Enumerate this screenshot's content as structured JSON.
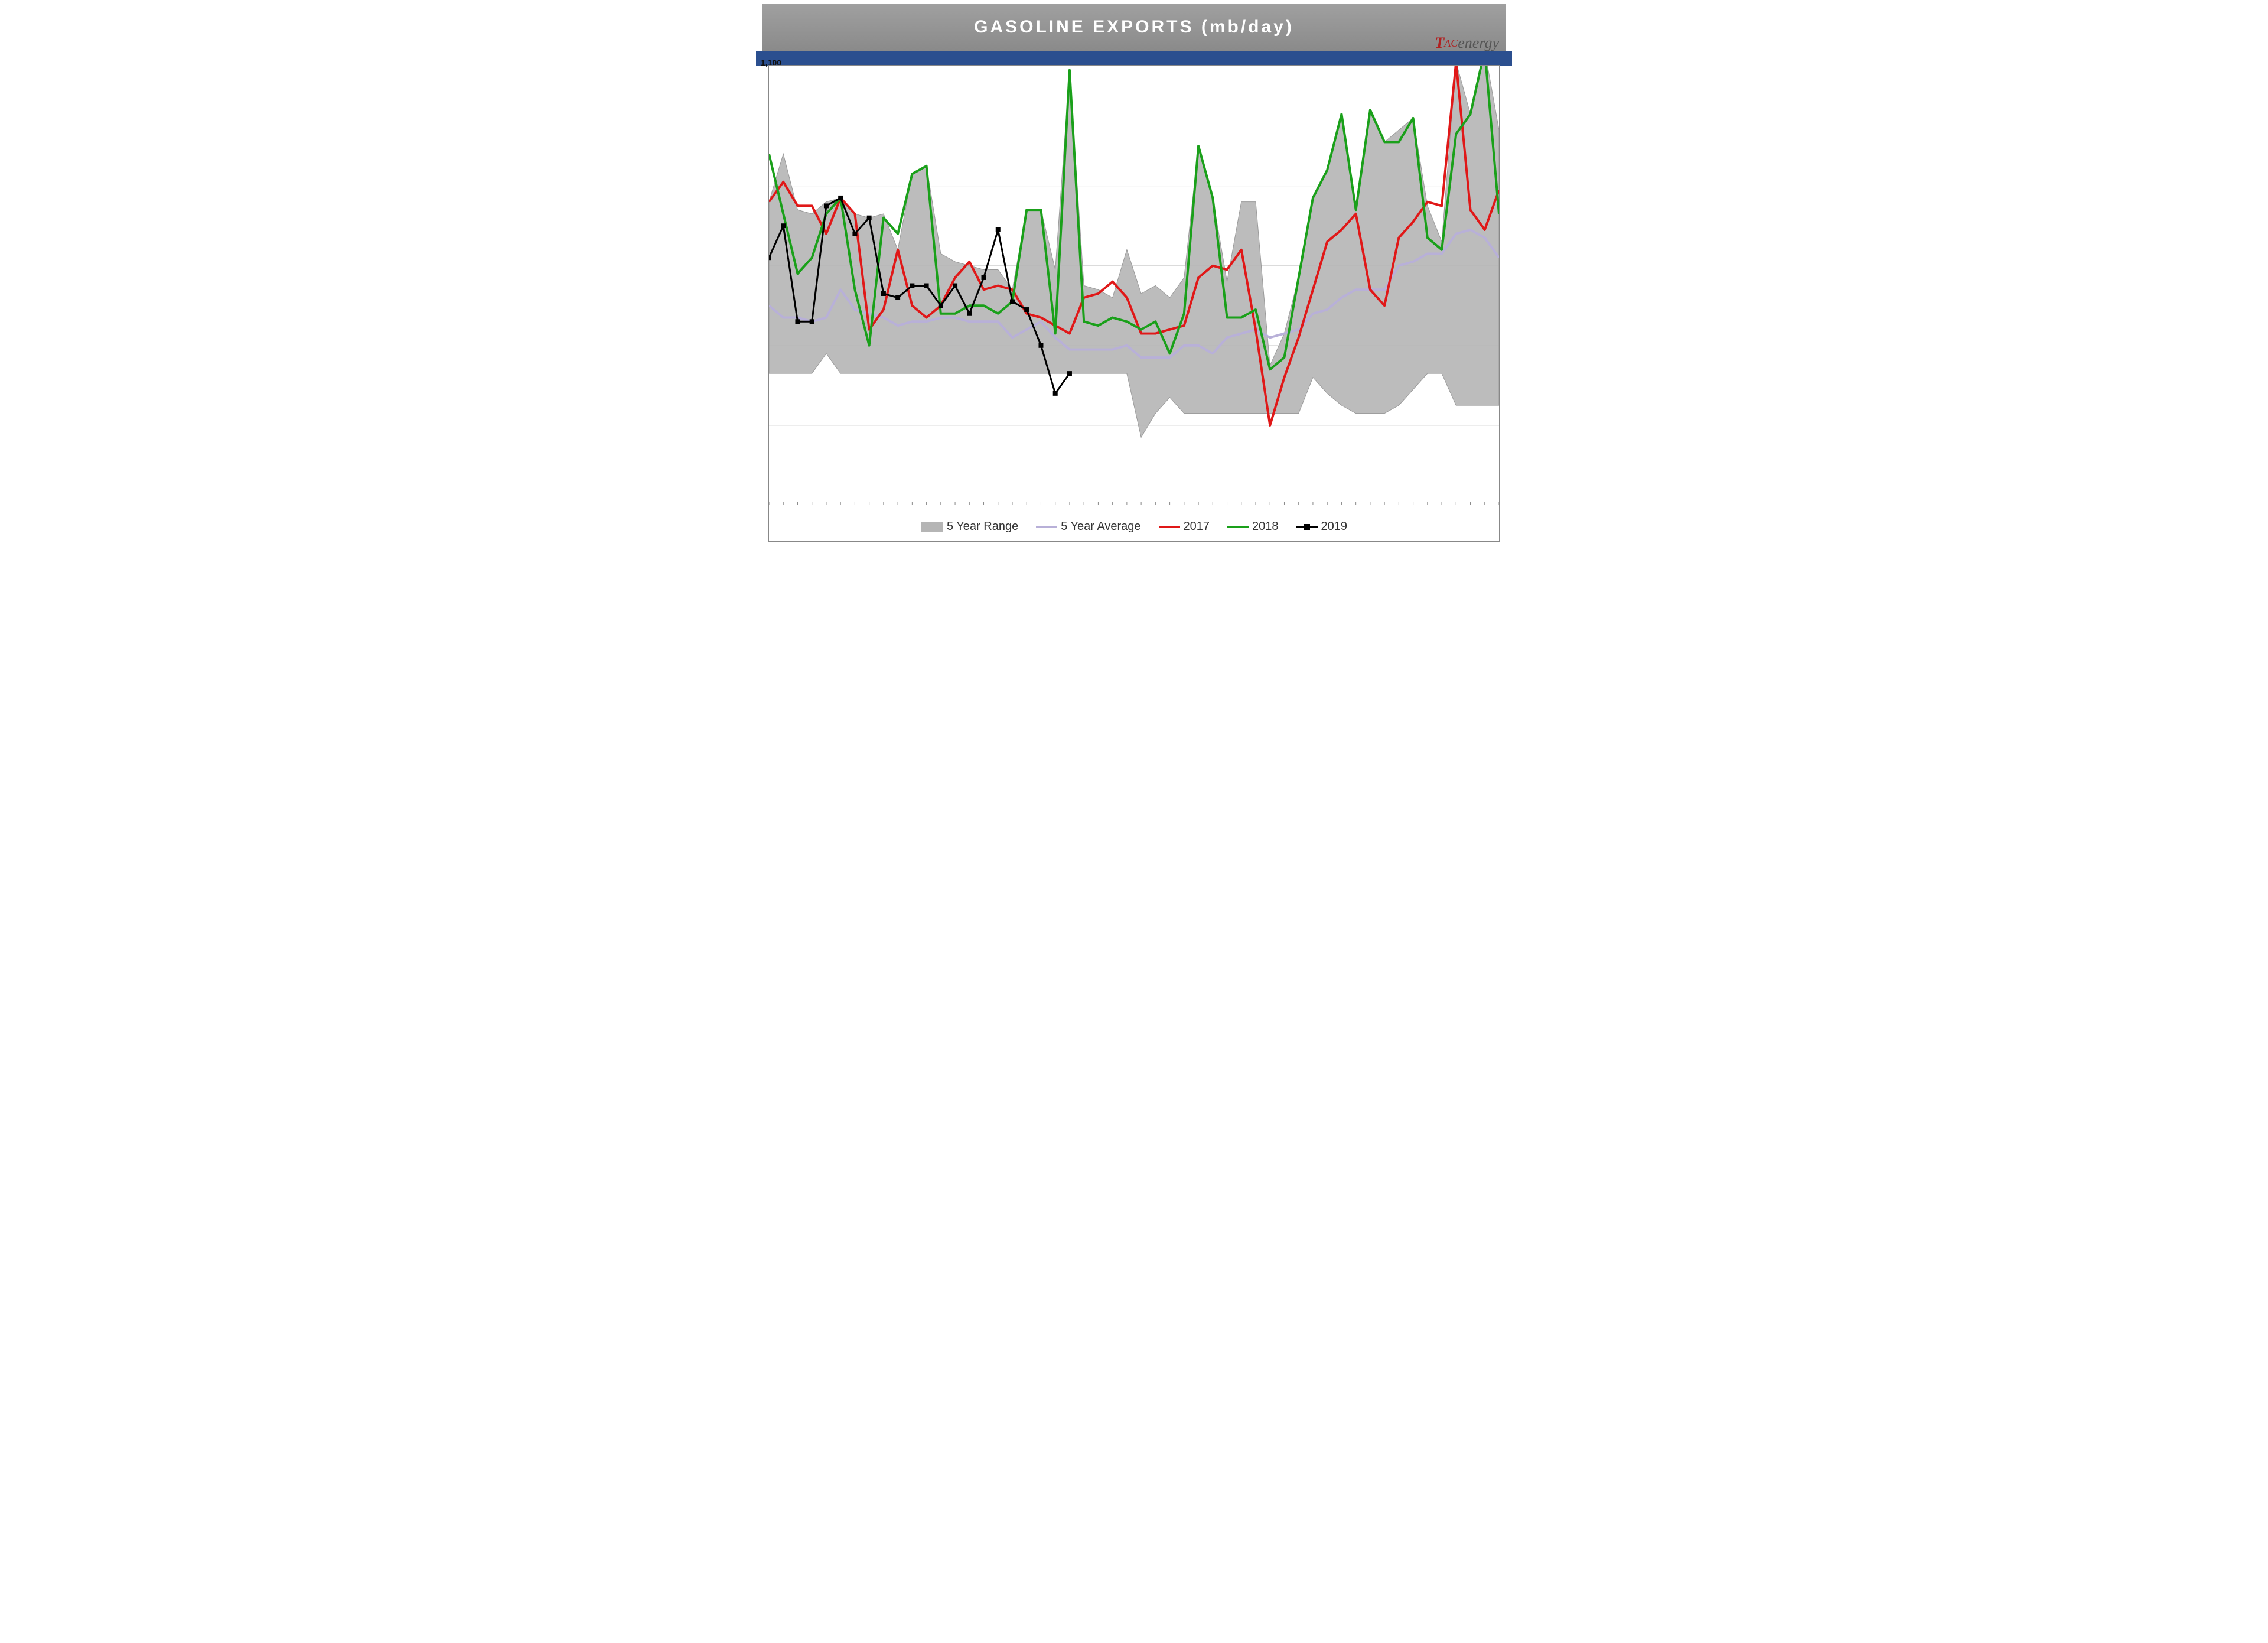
{
  "title": "GASOLINE  EXPORTS  (mb/day)",
  "logo": {
    "t": "T",
    "ac": "AC",
    "energy": "energy"
  },
  "visible_y_label": "1,100",
  "chart": {
    "type": "line",
    "background_color": "#ffffff",
    "grid_color": "#cfcfcf",
    "border_color": "#8a8a8a",
    "ylim": [
      100,
      1200
    ],
    "ytick_step": 200,
    "x_count": 52,
    "range_fill": "#b5b5b5",
    "range_stroke": "#9a9a9a",
    "series": {
      "avg": {
        "color": "#b8b0d8",
        "width": 4,
        "markers": false,
        "label": "5 Year Average"
      },
      "y2017": {
        "color": "#e01818",
        "width": 4,
        "markers": false,
        "label": "2017"
      },
      "y2018": {
        "color": "#1aa01a",
        "width": 4,
        "markers": false,
        "label": "2018"
      },
      "y2019": {
        "color": "#000000",
        "width": 3,
        "markers": true,
        "marker_size": 8,
        "label": "2019"
      }
    },
    "range_label": "5 Year Range",
    "range_upper": [
      860,
      980,
      840,
      830,
      860,
      870,
      830,
      820,
      830,
      740,
      930,
      950,
      730,
      710,
      700,
      690,
      690,
      640,
      840,
      840,
      690,
      1190,
      650,
      640,
      620,
      740,
      630,
      650,
      620,
      670,
      1000,
      870,
      660,
      860,
      860,
      450,
      530,
      670,
      870,
      940,
      1080,
      850,
      1090,
      1010,
      1040,
      1070,
      850,
      760,
      1210,
      1080,
      1240,
      1040
    ],
    "range_lower": [
      430,
      430,
      430,
      430,
      480,
      430,
      430,
      430,
      430,
      430,
      430,
      430,
      430,
      430,
      430,
      430,
      430,
      430,
      430,
      430,
      430,
      430,
      430,
      430,
      430,
      430,
      270,
      330,
      370,
      330,
      330,
      330,
      330,
      330,
      330,
      330,
      330,
      330,
      420,
      380,
      350,
      330,
      330,
      330,
      350,
      390,
      430,
      430,
      350,
      350,
      350,
      350
    ],
    "avg_data": [
      600,
      570,
      570,
      560,
      570,
      640,
      590,
      580,
      570,
      550,
      560,
      560,
      570,
      570,
      560,
      560,
      560,
      520,
      540,
      560,
      520,
      490,
      490,
      490,
      490,
      500,
      470,
      470,
      470,
      500,
      500,
      480,
      520,
      530,
      540,
      520,
      530,
      540,
      580,
      590,
      620,
      640,
      640,
      640,
      700,
      710,
      730,
      730,
      780,
      790,
      770,
      720
    ],
    "y2017_data": [
      860,
      910,
      850,
      850,
      780,
      870,
      830,
      540,
      590,
      740,
      600,
      570,
      600,
      670,
      710,
      640,
      650,
      640,
      580,
      570,
      550,
      530,
      620,
      630,
      660,
      620,
      530,
      530,
      540,
      550,
      670,
      700,
      690,
      740,
      540,
      300,
      420,
      520,
      640,
      760,
      790,
      830,
      640,
      600,
      770,
      810,
      860,
      850,
      1210,
      840,
      790,
      890
    ],
    "y2018_data": [
      980,
      830,
      680,
      720,
      830,
      870,
      640,
      500,
      820,
      780,
      930,
      950,
      580,
      580,
      600,
      600,
      580,
      610,
      840,
      840,
      530,
      1190,
      560,
      550,
      570,
      560,
      540,
      560,
      480,
      580,
      1000,
      870,
      570,
      570,
      590,
      440,
      470,
      670,
      870,
      940,
      1080,
      840,
      1090,
      1010,
      1010,
      1070,
      770,
      740,
      1030,
      1080,
      1240,
      830
    ],
    "y2019_data": [
      720,
      800,
      560,
      560,
      850,
      870,
      780,
      820,
      630,
      620,
      650,
      650,
      600,
      650,
      580,
      670,
      790,
      610,
      590,
      500,
      380,
      430
    ]
  },
  "legend_items": [
    {
      "key": "range"
    },
    {
      "key": "avg"
    },
    {
      "key": "y2017"
    },
    {
      "key": "y2018"
    },
    {
      "key": "y2019"
    }
  ]
}
